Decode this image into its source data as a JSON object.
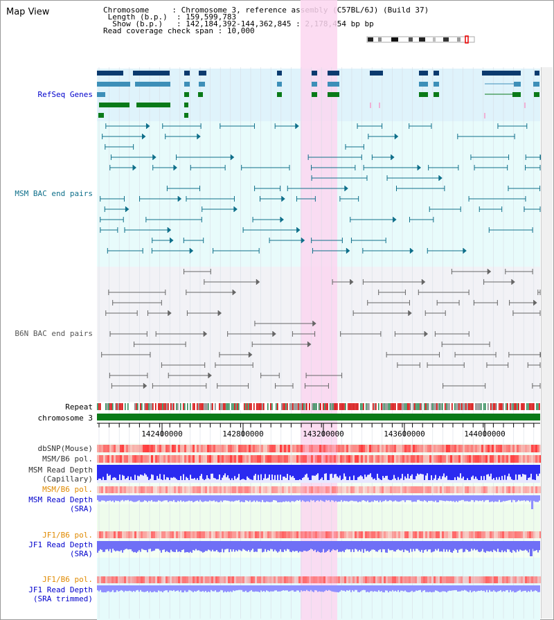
{
  "header": {
    "title": "Map View",
    "chromosome_label": "Chromosome",
    "chromosome_value": "Chromosome 3, reference assembly (C57BL/6J) (Build 37)",
    "length_label": "Length (b.p.)",
    "length_value": "159,599,783",
    "show_label": "Show (b.p.)",
    "show_value": "142,184,392-144,362,845 : 2,178,454 bp",
    "coverage_label": "Read coverage check span",
    "coverage_value": "10,000"
  },
  "tracks": {
    "refseq": "RefSeq Genes",
    "msm_bac": "MSM BAC end pairs",
    "b6n_bac": "B6N BAC end pairs",
    "repeat": "Repeat",
    "chromosome": "chromosome 3",
    "dbsnp": "dbSNP(Mouse)",
    "msm_b6_pol": "MSM/B6 pol.",
    "msm_depth_cap_1": "MSM Read Depth",
    "msm_depth_cap_2": "(Capillary)",
    "msm_b6_pol2": "MSM/B6 pol.",
    "msm_depth_sra_1": "MSM Read Depth",
    "msm_depth_sra_2": "(SRA)",
    "jf1_b6_pol": "JF1/B6 pol.",
    "jf1_depth_sra_1": "JF1 Read Depth",
    "jf1_depth_sra_2": "(SRA)",
    "jf1_b6_pol2": "JF1/B6 pol.",
    "jf1_depth_trim_1": "JF1 Read Depth",
    "jf1_depth_trim_2": "(SRA trimmed)"
  },
  "ruler": {
    "ticks": [
      "142400000",
      "142800000",
      "143200000",
      "143600000",
      "144000000"
    ]
  },
  "colors": {
    "refseq_bg": "#dff3fb",
    "msm_bg": "#e8fbfb",
    "b6n_bg": "#f2f2f6",
    "highlight": "#fbd6f0",
    "gene_dark": "#0b3a6e",
    "gene_mid": "#3d8fb8",
    "gene_green": "#0a7a18",
    "msm_line": "#0e6f8a",
    "b6n_line": "#666666",
    "chrom_bar": "#0a7a18",
    "depth_blue": "#2a2af0",
    "depth_light": "#8f8fff",
    "pol_red": "#ff3b3b",
    "label_blue": "#0000cc",
    "label_orange": "#e08a00"
  }
}
